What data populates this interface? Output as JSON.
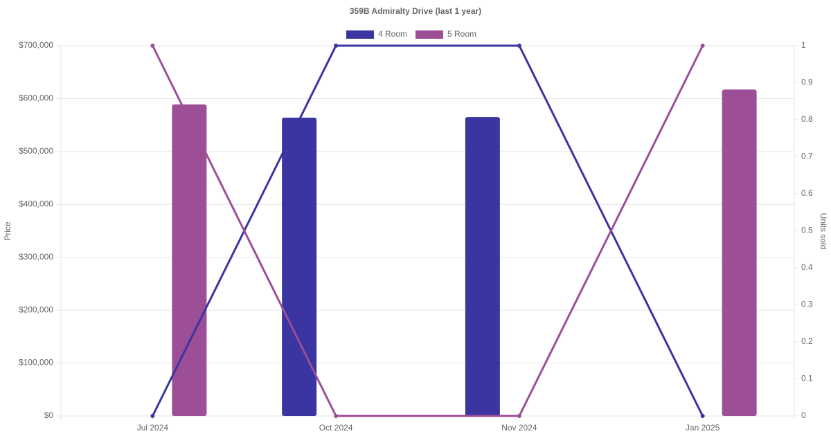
{
  "chart_data": {
    "type": "bar-line",
    "title": "359B Admiralty Drive (last 1 year)",
    "categories": [
      "Jul 2024",
      "Oct 2024",
      "Nov 2024",
      "Jan 2025"
    ],
    "series": [
      {
        "name": "4 Room",
        "color": "#3a35a0",
        "type": "bar",
        "values": [
          null,
          564000,
          565000,
          null
        ]
      },
      {
        "name": "5 Room",
        "color": "#9c4f96",
        "type": "bar",
        "values": [
          589000,
          null,
          null,
          617000
        ]
      },
      {
        "name": "4 Room",
        "color": "#3a35a0",
        "type": "line",
        "axis": "y2",
        "values": [
          0,
          1,
          1,
          0
        ]
      },
      {
        "name": "5 Room",
        "color": "#9c4f96",
        "type": "line",
        "axis": "y2",
        "values": [
          1,
          0,
          0,
          1
        ]
      }
    ],
    "ylabel": "Price",
    "y2label": "Units sold",
    "ylim": [
      0,
      700000
    ],
    "yticks": [
      {
        "value": 0,
        "label": "$0"
      },
      {
        "value": 100000,
        "label": "$100,000"
      },
      {
        "value": 200000,
        "label": "$200,000"
      },
      {
        "value": 300000,
        "label": "$300,000"
      },
      {
        "value": 400000,
        "label": "$400,000"
      },
      {
        "value": 500000,
        "label": "$500,000"
      },
      {
        "value": 600000,
        "label": "$600,000"
      },
      {
        "value": 700000,
        "label": "$700,000"
      }
    ],
    "y2lim": [
      0,
      1
    ],
    "y2ticks": [
      0,
      0.1,
      0.2,
      0.3,
      0.4,
      0.5,
      0.6,
      0.7,
      0.8,
      0.9,
      1
    ],
    "grid": true
  }
}
